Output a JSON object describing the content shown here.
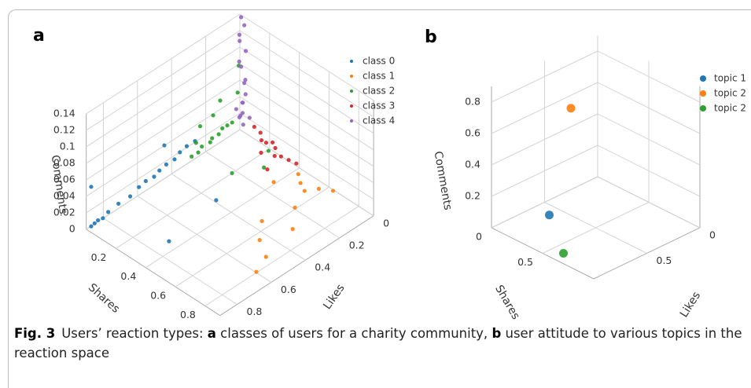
{
  "chart_data": [
    {
      "type": "scatter3d",
      "label": "a",
      "xlabel": "Likes",
      "ylabel": "Shares",
      "zlabel": "Comments",
      "xlim": [
        0,
        0.9
      ],
      "ylim": [
        0,
        0.9
      ],
      "zlim": [
        0,
        0.14
      ],
      "xticks": [
        0,
        0.2,
        0.4,
        0.6,
        0.8
      ],
      "yticks": [
        0.2,
        0.4,
        0.6,
        0.8
      ],
      "zticks": [
        0,
        0.02,
        0.04,
        0.06,
        0.08,
        0.1,
        0.12,
        0.14
      ],
      "grid": true,
      "legend": "upper right",
      "series": [
        {
          "name": "class 0",
          "color": "#1f77b4",
          "x": [
            0.88,
            0.86,
            0.84,
            0.82,
            0.78,
            0.72,
            0.66,
            0.6,
            0.56,
            0.52,
            0.48,
            0.44,
            0.4,
            0.36,
            0.32,
            0.28,
            0.88,
            0.46,
            0.4,
            0.72
          ],
          "y": [
            0.01,
            0.01,
            0.01,
            0.02,
            0.01,
            0.01,
            0.02,
            0.01,
            0.01,
            0.02,
            0.01,
            0.01,
            0.02,
            0.01,
            0.01,
            0.02,
            0.01,
            0.02,
            0.3,
            0.35
          ],
          "z": [
            0.002,
            0.003,
            0.004,
            0.005,
            0.006,
            0.008,
            0.01,
            0.012,
            0.014,
            0.015,
            0.016,
            0.018,
            0.02,
            0.022,
            0.024,
            0.026,
            0.05,
            0.045,
            0.003,
            0.002
          ]
        },
        {
          "name": "class 1",
          "color": "#ff7f0e",
          "x": [
            0.05,
            0.08,
            0.1,
            0.06,
            0.2,
            0.35,
            0.3,
            0.45,
            0.5,
            0.6,
            0.15,
            0.02
          ],
          "y": [
            0.45,
            0.5,
            0.55,
            0.6,
            0.6,
            0.55,
            0.7,
            0.65,
            0.75,
            0.8,
            0.4,
            0.65
          ],
          "z": [
            0.005,
            0.004,
            0.003,
            0.006,
            0.002,
            0,
            0.001,
            0.002,
            0,
            0.001,
            0.003,
            0.004
          ]
        },
        {
          "name": "class 2",
          "color": "#2ca02c",
          "x": [
            0.3,
            0.27,
            0.24,
            0.2,
            0.18,
            0.15,
            0.12,
            0.1,
            0.08,
            0.25,
            0.2,
            0.15,
            0.1,
            0.05,
            0.3,
            0.22,
            0.05,
            0.12
          ],
          "y": [
            0.02,
            0.03,
            0.02,
            0.03,
            0.02,
            0.03,
            0.02,
            0.03,
            0.04,
            0.02,
            0.05,
            0.04,
            0.1,
            0.05,
            0.05,
            0.2,
            0.25,
            0.3
          ],
          "z": [
            0.01,
            0.012,
            0.014,
            0.015,
            0.016,
            0.018,
            0.02,
            0.022,
            0.024,
            0.04,
            0.05,
            0.06,
            0.07,
            0.09,
            0.03,
            0,
            0.01,
            0.005
          ]
        },
        {
          "name": "class 3",
          "color": "#d62728",
          "x": [
            0.02,
            0.01,
            0.03,
            0.02,
            0,
            0.01,
            0.04,
            0.02,
            0.01,
            0,
            0.05,
            0.1
          ],
          "y": [
            0.12,
            0.15,
            0.18,
            0.2,
            0.22,
            0.25,
            0.28,
            0.3,
            0.34,
            0.38,
            0.2,
            0.3
          ],
          "z": [
            0.02,
            0.015,
            0.012,
            0.01,
            0.01,
            0.008,
            0.006,
            0.005,
            0.004,
            0.003,
            0.002,
            0
          ]
        },
        {
          "name": "class 4",
          "color": "#9467bd",
          "x": [
            0.02,
            0.01,
            0.03,
            0,
            0.02,
            0.01,
            0,
            0.02,
            0.01,
            0.03,
            0,
            0.01,
            0.02,
            0,
            0.01,
            0.04,
            0.05,
            0.03
          ],
          "y": [
            0.02,
            0.03,
            0.01,
            0.02,
            0.04,
            0.05,
            0.03,
            0.06,
            0.02,
            0.03,
            0.04,
            0.01,
            0.02,
            0.03,
            0.02,
            0.05,
            0.08,
            0.1
          ],
          "z": [
            0.02,
            0.025,
            0.03,
            0.035,
            0.04,
            0.05,
            0.06,
            0.07,
            0.08,
            0.09,
            0.1,
            0.11,
            0.12,
            0.13,
            0.14,
            0.028,
            0.022,
            0.03
          ]
        }
      ]
    },
    {
      "type": "scatter3d",
      "label": "b",
      "xlabel": "Likes",
      "ylabel": "Shares",
      "zlabel": "Comments",
      "xlim": [
        0,
        1
      ],
      "ylim": [
        0,
        1
      ],
      "zlim": [
        0,
        0.9
      ],
      "xticks": [
        0,
        0.5
      ],
      "yticks": [
        0,
        0.5
      ],
      "zticks": [
        0.2,
        0.4,
        0.6,
        0.8
      ],
      "grid": true,
      "legend": "upper right",
      "series": [
        {
          "name": "topic 1",
          "color": "#1f77b4",
          "x": [
            0.6
          ],
          "y": [
            0.15
          ],
          "z": [
            0
          ]
        },
        {
          "name": "topic 2",
          "color": "#ff7f0e",
          "x": [
            0.3
          ],
          "y": [
            0.05
          ],
          "z": [
            0.55
          ]
        },
        {
          "name": "topic 2",
          "color": "#2ca02c",
          "x": [
            0.9
          ],
          "y": [
            0.6
          ],
          "z": [
            0
          ]
        }
      ]
    }
  ],
  "caption": [
    {
      "text": "Fig. 3",
      "bold": true
    },
    {
      "text": "Users’ reaction types: "
    },
    {
      "text": "a",
      "bold": true
    },
    {
      "text": " classes of users for a charity community, "
    },
    {
      "text": "b",
      "bold": true
    },
    {
      "text": " user attitude to various topics in the reaction space"
    }
  ]
}
